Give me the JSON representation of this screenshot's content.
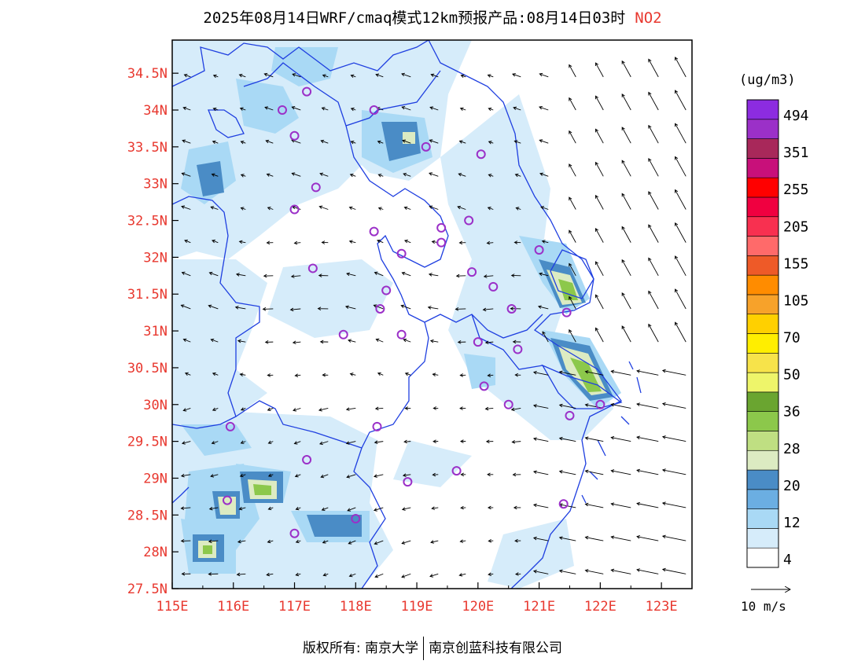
{
  "header": {
    "title": "2025年08月14日WRF/cmaq模式12km预报产品:08月14日03时",
    "pollutant": "NO2"
  },
  "axes": {
    "lon_labels": [
      "115E",
      "116E",
      "117E",
      "118E",
      "119E",
      "120E",
      "121E",
      "122E",
      "123E"
    ],
    "lat_labels": [
      "27.5N",
      "28N",
      "28.5N",
      "29N",
      "29.5N",
      "30N",
      "30.5N",
      "31N",
      "31.5N",
      "32N",
      "32.5N",
      "33N",
      "33.5N",
      "34N",
      "34.5N"
    ],
    "lon_range": [
      115,
      123.5
    ],
    "lat_range": [
      27.5,
      34.95
    ],
    "label_color": "#e8382f"
  },
  "legend": {
    "unit": "(ug/m3)",
    "labels": [
      "494",
      "351",
      "255",
      "205",
      "155",
      "105",
      "70",
      "50",
      "36",
      "28",
      "20",
      "12",
      "4"
    ],
    "colors": [
      "#ffffff",
      "#d6ecfa",
      "#a9d9f5",
      "#6baee2",
      "#4a8cc6",
      "#dcebc2",
      "#bfdf82",
      "#8cc84b",
      "#6aa530",
      "#eef56a",
      "#f7e34a",
      "#ffee00",
      "#ffd000",
      "#f7a22a",
      "#ff8c00",
      "#ee5a28",
      "#ff6a6a",
      "#f83050",
      "#f00040",
      "#ff0000",
      "#c8107a",
      "#a8285a",
      "#9b30c8",
      "#8c2ce0"
    ]
  },
  "wind_reference": {
    "label": "10 m/s"
  },
  "footer": {
    "left": "版权所有: 南京大学",
    "right": "南京创蓝科技有限公司"
  },
  "stations": [
    [
      116.8,
      34.0
    ],
    [
      117.2,
      34.25
    ],
    [
      117.0,
      33.65
    ],
    [
      118.3,
      34.0
    ],
    [
      119.15,
      33.5
    ],
    [
      120.05,
      33.4
    ],
    [
      117.35,
      32.95
    ],
    [
      117.0,
      32.65
    ],
    [
      118.3,
      32.35
    ],
    [
      118.75,
      32.05
    ],
    [
      119.4,
      32.4
    ],
    [
      119.4,
      32.2
    ],
    [
      119.85,
      32.5
    ],
    [
      117.3,
      31.85
    ],
    [
      118.5,
      31.55
    ],
    [
      118.4,
      31.3
    ],
    [
      119.9,
      31.8
    ],
    [
      120.25,
      31.6
    ],
    [
      120.55,
      31.3
    ],
    [
      121.0,
      32.1
    ],
    [
      121.45,
      31.25
    ],
    [
      117.8,
      30.95
    ],
    [
      118.75,
      30.95
    ],
    [
      120.0,
      30.85
    ],
    [
      120.65,
      30.75
    ],
    [
      120.1,
      30.25
    ],
    [
      120.5,
      30.0
    ],
    [
      121.5,
      29.85
    ],
    [
      122.0,
      30.0
    ],
    [
      115.95,
      29.7
    ],
    [
      118.35,
      29.7
    ],
    [
      117.2,
      29.25
    ],
    [
      119.65,
      29.1
    ],
    [
      118.85,
      28.95
    ],
    [
      115.9,
      28.7
    ],
    [
      118.0,
      28.45
    ],
    [
      117.0,
      28.25
    ],
    [
      121.4,
      28.65
    ]
  ]
}
